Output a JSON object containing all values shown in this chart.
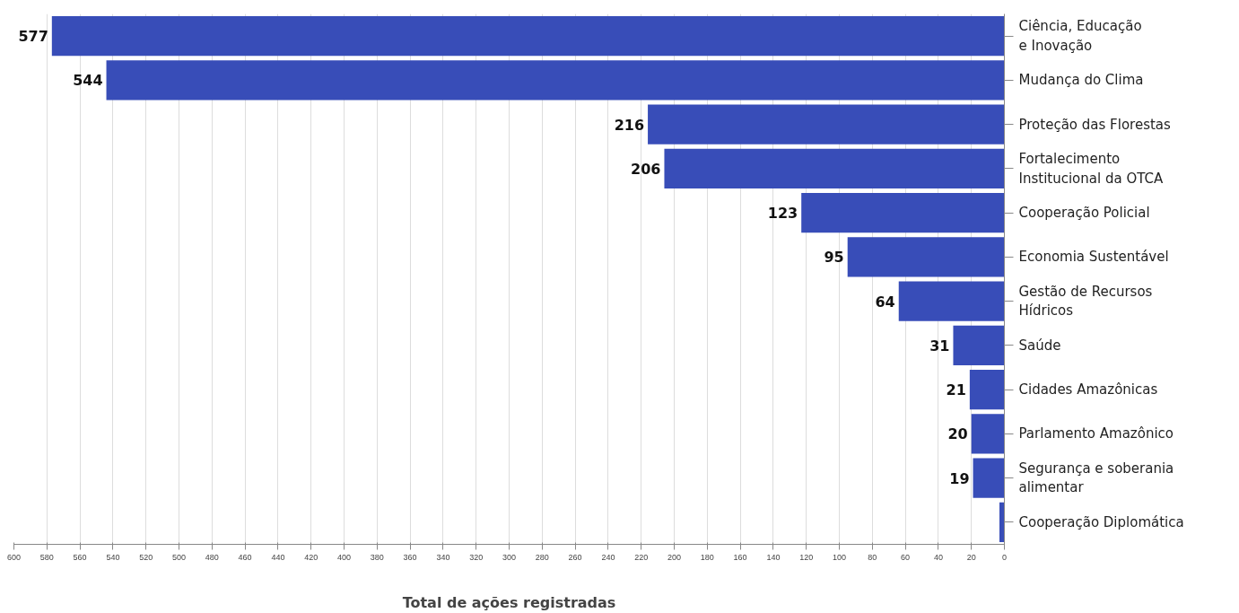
{
  "chart_data": {
    "type": "bar",
    "orientation": "horizontal",
    "xlabel": "Total de ações registradas",
    "categories": [
      "Ciência, Educação\ne Inovação",
      "Mudança do Clima",
      "Proteção das Florestas",
      "Fortalecimento\nInstitucional da OTCA",
      "Cooperação Policial",
      "Economia Sustentável",
      "Gestão de Recursos\nHídricos",
      "Saúde",
      "Cidades Amazônicas",
      "Parlamento Amazônico",
      "Segurança e soberania\nalimentar",
      "Cooperação Diplomática"
    ],
    "values": [
      577,
      544,
      216,
      206,
      123,
      95,
      64,
      31,
      21,
      20,
      19,
      3
    ],
    "value_labels": [
      "577",
      "544",
      "216",
      "206",
      "123",
      "95",
      "64",
      "31",
      "21",
      "20",
      "19",
      null
    ],
    "color": "#384db8",
    "xlim": [
      600,
      0
    ],
    "xticks": [
      600,
      580,
      560,
      540,
      520,
      500,
      480,
      460,
      440,
      420,
      400,
      380,
      360,
      340,
      320,
      300,
      280,
      260,
      240,
      220,
      200,
      180,
      160,
      140,
      120,
      100,
      80,
      60,
      40,
      20,
      0
    ],
    "grid": "x"
  }
}
